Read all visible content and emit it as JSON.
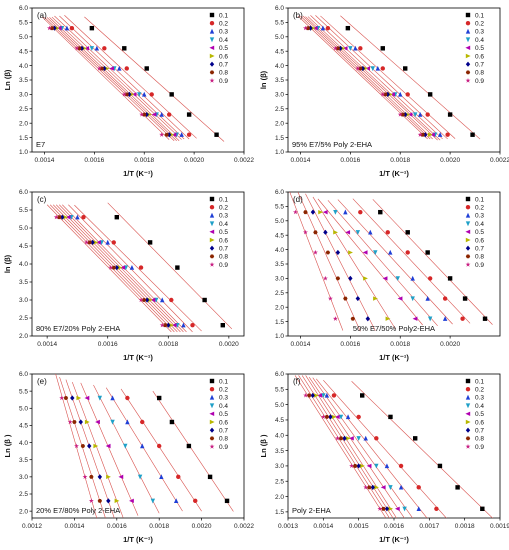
{
  "colors": {
    "series": [
      "#000000",
      "#d62728",
      "#1f3fd6",
      "#1fa0c8",
      "#b000b0",
      "#b8b800",
      "#00008b",
      "#8b2500",
      "#c81e82"
    ],
    "fit_line": "#d9534f",
    "axis": "#000000"
  },
  "marker_shapes": [
    "square",
    "circle",
    "triangle-up",
    "triangle-down",
    "triangle-left",
    "triangle-right",
    "diamond",
    "hexagon",
    "star"
  ],
  "legend_labels": [
    "0.1",
    "0.2",
    "0.3",
    "0.4",
    "0.5",
    "0.6",
    "0.7",
    "0.8",
    "0.9"
  ],
  "chart_data": [
    {
      "type": "scatter",
      "panel_label": "(a)",
      "sample": "E7",
      "xlabel": "1/T (K⁻¹)",
      "ylabel": "Ln (β)",
      "xlim": [
        0.00135,
        0.0022
      ],
      "ylim": [
        1.0,
        6.0
      ],
      "xticks": [
        "0.0014",
        "0.0016",
        "0.0018",
        "0.0020",
        "0.0022"
      ],
      "xtick_values": [
        0.0014,
        0.0016,
        0.0018,
        0.002,
        0.0022
      ],
      "yticks": [
        "1.0",
        "1.5",
        "2.0",
        "2.5",
        "3.0",
        "3.5",
        "4.0",
        "4.5",
        "5.0",
        "5.5",
        "6.0"
      ],
      "ytick_values": [
        1.0,
        1.5,
        2.0,
        2.5,
        3.0,
        3.5,
        4.0,
        4.5,
        5.0,
        5.5,
        6.0
      ],
      "legend_position": "top-right",
      "sample_position": "bottom-left",
      "y": [
        5.3,
        4.6,
        3.9,
        3.0,
        2.3,
        1.6
      ],
      "series": [
        {
          "name": "0.1",
          "x": [
            0.00159,
            0.00172,
            0.00181,
            0.00191,
            0.00198,
            0.00209
          ]
        },
        {
          "name": "0.2",
          "x": [
            0.00151,
            0.00164,
            0.00173,
            0.00183,
            0.0019,
            0.00198
          ]
        },
        {
          "name": "0.3",
          "x": [
            0.00149,
            0.00161,
            0.0017,
            0.0018,
            0.00187,
            0.00195
          ]
        },
        {
          "name": "0.4",
          "x": [
            0.00147,
            0.00159,
            0.00168,
            0.00178,
            0.00185,
            0.00193
          ]
        },
        {
          "name": "0.5",
          "x": [
            0.00146,
            0.00157,
            0.00167,
            0.00176,
            0.00184,
            0.00192
          ]
        },
        {
          "name": "0.6",
          "x": [
            0.00145,
            0.00156,
            0.00165,
            0.00175,
            0.00182,
            0.00191
          ]
        },
        {
          "name": "0.7",
          "x": [
            0.00144,
            0.00155,
            0.00164,
            0.00174,
            0.00181,
            0.0019
          ]
        },
        {
          "name": "0.8",
          "x": [
            0.00143,
            0.00154,
            0.00163,
            0.00173,
            0.0018,
            0.00189
          ]
        },
        {
          "name": "0.9",
          "x": [
            0.00142,
            0.00153,
            0.00162,
            0.00172,
            0.00179,
            0.00187
          ]
        }
      ]
    },
    {
      "type": "scatter",
      "panel_label": "(b)",
      "sample": "95% E7/5% Poly 2-EHA",
      "xlabel": "1/T (K⁻¹)",
      "ylabel": "ln (β)",
      "xlim": [
        0.00135,
        0.0022
      ],
      "ylim": [
        1.0,
        6.0
      ],
      "xticks": [
        "0.0014",
        "0.0016",
        "0.0018",
        "0.0020",
        "0.0022"
      ],
      "xtick_values": [
        0.0014,
        0.0016,
        0.0018,
        0.002,
        0.0022
      ],
      "yticks": [
        "1.0",
        "1.5",
        "2.0",
        "2.5",
        "3.0",
        "3.5",
        "4.0",
        "4.5",
        "5.0",
        "5.5",
        "6.0"
      ],
      "ytick_values": [
        1.0,
        1.5,
        2.0,
        2.5,
        3.0,
        3.5,
        4.0,
        4.5,
        5.0,
        5.5,
        6.0
      ],
      "legend_position": "top-right",
      "sample_position": "bottom-left",
      "y": [
        5.3,
        4.6,
        3.9,
        3.0,
        2.3,
        1.6
      ],
      "series": [
        {
          "name": "0.1",
          "x": [
            0.00159,
            0.00173,
            0.00182,
            0.00192,
            0.002,
            0.00209
          ]
        },
        {
          "name": "0.2",
          "x": [
            0.00151,
            0.00164,
            0.00173,
            0.00183,
            0.00191,
            0.00199
          ]
        },
        {
          "name": "0.3",
          "x": [
            0.00149,
            0.00162,
            0.00171,
            0.0018,
            0.00188,
            0.00196
          ]
        },
        {
          "name": "0.4",
          "x": [
            0.00147,
            0.0016,
            0.00169,
            0.00178,
            0.00186,
            0.00194
          ]
        },
        {
          "name": "0.5",
          "x": [
            0.00146,
            0.00158,
            0.00167,
            0.00177,
            0.00184,
            0.00193
          ]
        },
        {
          "name": "0.6",
          "x": [
            0.00145,
            0.00157,
            0.00166,
            0.00176,
            0.00183,
            0.00192
          ]
        },
        {
          "name": "0.7",
          "x": [
            0.00144,
            0.00156,
            0.00165,
            0.00175,
            0.00182,
            0.0019
          ]
        },
        {
          "name": "0.8",
          "x": [
            0.00143,
            0.00155,
            0.00164,
            0.00174,
            0.00181,
            0.00189
          ]
        },
        {
          "name": "0.9",
          "x": [
            0.00142,
            0.00154,
            0.00163,
            0.00173,
            0.0018,
            0.00188
          ]
        }
      ]
    },
    {
      "type": "scatter",
      "panel_label": "(c)",
      "sample": "80% E7/20% Poly 2-EHA",
      "xlabel": "1/T (K⁻¹)",
      "ylabel": "ln (β)",
      "xlim": [
        0.00135,
        0.00205
      ],
      "ylim": [
        2.0,
        6.0
      ],
      "xticks": [
        "0.0014",
        "0.0016",
        "0.0018",
        "0.0020"
      ],
      "xtick_values": [
        0.0014,
        0.0016,
        0.0018,
        0.002
      ],
      "yticks": [
        "2.0",
        "2.5",
        "3.0",
        "3.5",
        "4.0",
        "4.5",
        "5.0",
        "5.5",
        "6.0"
      ],
      "ytick_values": [
        2.0,
        2.5,
        3.0,
        3.5,
        4.0,
        4.5,
        5.0,
        5.5,
        6.0
      ],
      "legend_position": "top-right",
      "sample_position": "bottom-left",
      "y": [
        5.3,
        4.6,
        3.9,
        3.0,
        2.3
      ],
      "series": [
        {
          "name": "0.1",
          "x": [
            0.00163,
            0.00174,
            0.00183,
            0.00192,
            0.00198
          ]
        },
        {
          "name": "0.2",
          "x": [
            0.00152,
            0.00162,
            0.00171,
            0.00181,
            0.00188
          ]
        },
        {
          "name": "0.3",
          "x": [
            0.0015,
            0.0016,
            0.00168,
            0.00178,
            0.00185
          ]
        },
        {
          "name": "0.4",
          "x": [
            0.00148,
            0.00158,
            0.00166,
            0.00176,
            0.00183
          ]
        },
        {
          "name": "0.5",
          "x": [
            0.00147,
            0.00157,
            0.00165,
            0.00175,
            0.00182
          ]
        },
        {
          "name": "0.6",
          "x": [
            0.00146,
            0.00156,
            0.00164,
            0.00174,
            0.00181
          ]
        },
        {
          "name": "0.7",
          "x": [
            0.00145,
            0.00155,
            0.00163,
            0.00173,
            0.0018
          ]
        },
        {
          "name": "0.8",
          "x": [
            0.00144,
            0.00154,
            0.00162,
            0.00172,
            0.00179
          ]
        },
        {
          "name": "0.9",
          "x": [
            0.00143,
            0.00153,
            0.00161,
            0.00171,
            0.00178
          ]
        }
      ]
    },
    {
      "type": "scatter",
      "panel_label": "(d)",
      "sample": "50% E7/50% Poly2-EHA",
      "xlabel": "1/T (K⁻¹)",
      "ylabel": "",
      "xlim": [
        0.00135,
        0.0022
      ],
      "ylim": [
        1.0,
        6.0
      ],
      "xticks": [
        "0.0014",
        "0.0016",
        "0.0018",
        "0.0020"
      ],
      "xtick_values": [
        0.0014,
        0.0016,
        0.0018,
        0.002
      ],
      "yticks": [
        "1.0",
        "1.5",
        "2.0",
        "2.5",
        "3.0",
        "3.5",
        "4.0",
        "4.5",
        "5.0",
        "5.5",
        "6.0"
      ],
      "ytick_values": [
        1.0,
        1.5,
        2.0,
        2.5,
        3.0,
        3.5,
        4.0,
        4.5,
        5.0,
        5.5,
        6.0
      ],
      "legend_position": "top-right",
      "sample_position": "bottom-center",
      "y": [
        5.3,
        4.6,
        3.9,
        3.0,
        2.3,
        1.6
      ],
      "series": [
        {
          "name": "0.1",
          "x": [
            0.00172,
            0.00183,
            0.00191,
            0.002,
            0.00206,
            0.00214
          ]
        },
        {
          "name": "0.2",
          "x": [
            0.00164,
            0.00175,
            0.00183,
            0.00192,
            0.00198,
            0.00205
          ]
        },
        {
          "name": "0.3",
          "x": [
            0.00158,
            0.00168,
            0.00176,
            0.00185,
            0.00191,
            0.00198
          ]
        },
        {
          "name": "0.4",
          "x": [
            0.00154,
            0.00163,
            0.0017,
            0.00179,
            0.00185,
            0.00192
          ]
        },
        {
          "name": "0.5",
          "x": [
            0.0015,
            0.00159,
            0.00166,
            0.00174,
            0.0018,
            0.00186
          ]
        },
        {
          "name": "0.6",
          "x": [
            0.00148,
            0.00154,
            0.0016,
            0.00166,
            0.0017,
            0.00175
          ]
        },
        {
          "name": "0.7",
          "x": [
            0.00145,
            0.0015,
            0.00155,
            0.0016,
            0.00163,
            0.00167
          ]
        },
        {
          "name": "0.8",
          "x": [
            0.00142,
            0.00146,
            0.00151,
            0.00155,
            0.00158,
            0.00161
          ]
        },
        {
          "name": "0.9",
          "x": [
            0.00138,
            0.00142,
            0.00146,
            0.0015,
            0.00152,
            0.00154
          ]
        }
      ]
    },
    {
      "type": "scatter",
      "panel_label": "(e)",
      "sample": "20% E7/80% Poly 2-EHA",
      "xlabel": "1/T (K⁻¹)",
      "ylabel": "Ln (β )",
      "xlim": [
        0.0012,
        0.0022
      ],
      "ylim": [
        1.8,
        6.0
      ],
      "xticks": [
        "0.0012",
        "0.0014",
        "0.0016",
        "0.0018",
        "0.0020",
        "0.0022"
      ],
      "xtick_values": [
        0.0012,
        0.0014,
        0.0016,
        0.0018,
        0.002,
        0.0022
      ],
      "yticks": [
        "2.0",
        "2.5",
        "3.0",
        "3.5",
        "4.0",
        "4.5",
        "5.0",
        "5.5",
        "6.0"
      ],
      "ytick_values": [
        2.0,
        2.5,
        3.0,
        3.5,
        4.0,
        4.5,
        5.0,
        5.5,
        6.0
      ],
      "legend_position": "top-right",
      "sample_position": "bottom-left",
      "y": [
        5.3,
        4.6,
        3.9,
        3.0,
        2.3
      ],
      "series": [
        {
          "name": "0.1",
          "x": [
            0.0018,
            0.00186,
            0.00194,
            0.00204,
            0.00212
          ]
        },
        {
          "name": "0.2",
          "x": [
            0.00165,
            0.00172,
            0.0018,
            0.00189,
            0.00197
          ]
        },
        {
          "name": "0.3",
          "x": [
            0.00158,
            0.00165,
            0.00172,
            0.00181,
            0.00188
          ]
        },
        {
          "name": "0.4",
          "x": [
            0.00152,
            0.00158,
            0.00164,
            0.00171,
            0.00177
          ]
        },
        {
          "name": "0.5",
          "x": [
            0.00146,
            0.00151,
            0.00156,
            0.00162,
            0.00167
          ]
        },
        {
          "name": "0.6",
          "x": [
            0.00142,
            0.00146,
            0.0015,
            0.00156,
            0.0016
          ]
        },
        {
          "name": "0.7",
          "x": [
            0.00139,
            0.00143,
            0.00147,
            0.00152,
            0.00156
          ]
        },
        {
          "name": "0.8",
          "x": [
            0.00136,
            0.0014,
            0.00144,
            0.00148,
            0.00152
          ]
        },
        {
          "name": "0.9",
          "x": [
            0.00134,
            0.00138,
            0.00141,
            0.00145,
            0.00148
          ]
        }
      ]
    },
    {
      "type": "scatter",
      "panel_label": "(f)",
      "sample": "Poly 2-EHA",
      "xlabel": "1/T (K⁻¹)",
      "ylabel": "Ln (β )",
      "xlim": [
        0.0013,
        0.0019
      ],
      "ylim": [
        1.3,
        6.0
      ],
      "xticks": [
        "0.0013",
        "0.0014",
        "0.0015",
        "0.0016",
        "0.0017",
        "0.0018",
        "0.0019"
      ],
      "xtick_values": [
        0.0013,
        0.0014,
        0.0015,
        0.0016,
        0.0017,
        0.0018,
        0.0019
      ],
      "yticks": [
        "1.5",
        "2.0",
        "2.5",
        "3.0",
        "3.5",
        "4.0",
        "4.5",
        "5.0",
        "5.5",
        "6.0"
      ],
      "ytick_values": [
        1.5,
        2.0,
        2.5,
        3.0,
        3.5,
        4.0,
        4.5,
        5.0,
        5.5,
        6.0
      ],
      "legend_position": "top-right",
      "sample_position": "bottom-left",
      "y": [
        5.3,
        4.6,
        3.9,
        3.0,
        2.3,
        1.6
      ],
      "series": [
        {
          "name": "0.1",
          "x": [
            0.00151,
            0.00159,
            0.00166,
            0.00173,
            0.00178,
            0.00185
          ]
        },
        {
          "name": "0.2",
          "x": [
            0.00143,
            0.0015,
            0.00155,
            0.00162,
            0.00167,
            0.00172
          ]
        },
        {
          "name": "0.3",
          "x": [
            0.00141,
            0.00147,
            0.00152,
            0.00158,
            0.00162,
            0.00167
          ]
        },
        {
          "name": "0.4",
          "x": [
            0.0014,
            0.00145,
            0.0015,
            0.00155,
            0.00159,
            0.00163
          ]
        },
        {
          "name": "0.5",
          "x": [
            0.00139,
            0.00144,
            0.00148,
            0.00153,
            0.00157,
            0.00161
          ]
        },
        {
          "name": "0.6",
          "x": [
            0.00138,
            0.00143,
            0.00147,
            0.00151,
            0.00155,
            0.00159
          ]
        },
        {
          "name": "0.7",
          "x": [
            0.00137,
            0.00142,
            0.00146,
            0.0015,
            0.00154,
            0.00158
          ]
        },
        {
          "name": "0.8",
          "x": [
            0.00136,
            0.00141,
            0.00145,
            0.00149,
            0.00153,
            0.00157
          ]
        },
        {
          "name": "0.9",
          "x": [
            0.00135,
            0.0014,
            0.00144,
            0.00148,
            0.00152,
            0.00156
          ]
        }
      ]
    }
  ]
}
